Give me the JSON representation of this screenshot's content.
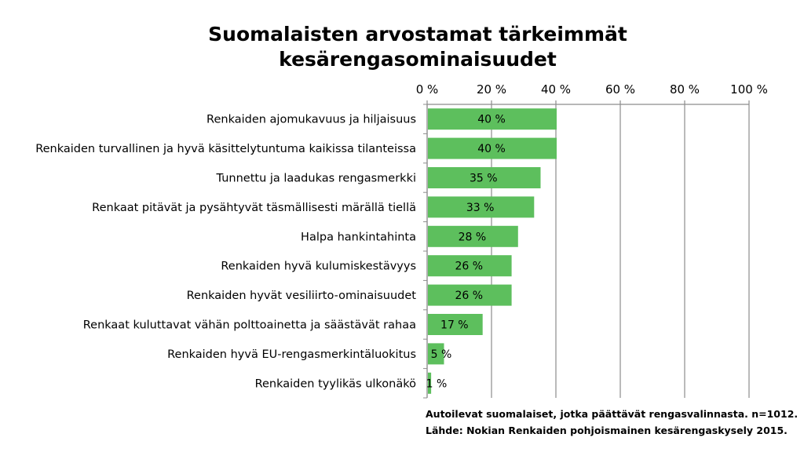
{
  "chart_data": {
    "type": "bar",
    "orientation": "horizontal",
    "title_lines": [
      "Suomalaisten arvostamat tärkeimmät",
      "kesärengasominaisuudet"
    ],
    "categories": [
      "Renkaiden ajomukavuus ja hiljaisuus",
      "Renkaiden turvallinen ja hyvä käsittelytuntuma kaikissa tilanteissa",
      "Tunnettu ja laadukas rengasmerkki",
      "Renkaat pitävät ja pysähtyvät täsmällisesti märällä tiellä",
      "Halpa hankintahinta",
      "Renkaiden hyvä kulumiskestävyys",
      "Renkaiden hyvät vesiliirto-ominaisuudet",
      "Renkaat kuluttavat vähän polttoainetta ja säästävät rahaa",
      "Renkaiden hyvä EU-rengasmerkintäluokitus",
      "Renkaiden tyylikäs ulkonäkö"
    ],
    "values": [
      40,
      40,
      35,
      33,
      28,
      26,
      26,
      17,
      5,
      1
    ],
    "data_labels": [
      "40 %",
      "40 %",
      "35 %",
      "33 %",
      "28 %",
      "26 %",
      "26 %",
      "17 %",
      "5 %",
      "1 %"
    ],
    "xlim": [
      0,
      100
    ],
    "x_ticks": [
      "0 %",
      "20 %",
      "40 %",
      "60 %",
      "80 %",
      "100 %"
    ],
    "x_axis_position": "top",
    "grid": true,
    "bar_color": "#5dbf5d",
    "footnote_lines": [
      "Autoilevat suomalaiset, jotka päättävät rengasvalinnasta. n=1012.",
      "Lähde: Nokian Renkaiden pohjoismainen kesärengaskysely 2015."
    ]
  }
}
